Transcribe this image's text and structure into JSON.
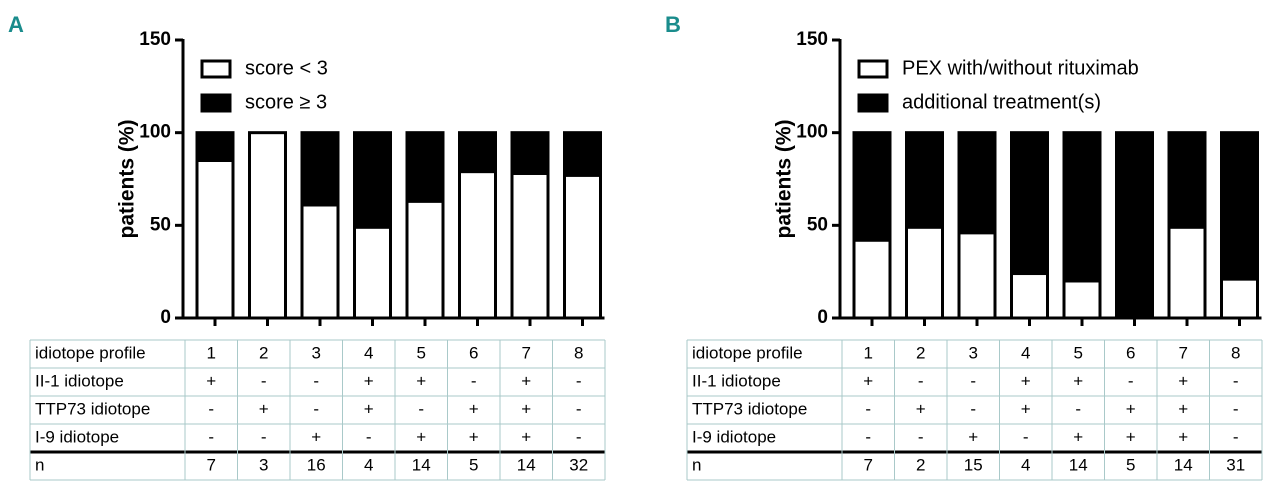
{
  "chart_data": [
    {
      "type": "bar",
      "stacked": true,
      "panel": "A",
      "ylabel": "patients (%)",
      "ylim": [
        0,
        150
      ],
      "yticks": [
        0,
        50,
        100,
        150
      ],
      "x_label": "idiotope profile",
      "categories": [
        "1",
        "2",
        "3",
        "4",
        "5",
        "6",
        "7",
        "8"
      ],
      "series": [
        {
          "name": "score < 3",
          "color": "#ffffff",
          "values": [
            85,
            100,
            61,
            49,
            63,
            79,
            78,
            77
          ]
        },
        {
          "name": "score ≥ 3",
          "color": "#000000",
          "values": [
            15,
            0,
            39,
            51,
            37,
            21,
            22,
            23
          ]
        }
      ],
      "table": [
        {
          "label": "II-1 idiotope",
          "values": [
            "+",
            "-",
            "-",
            "+",
            "+",
            "-",
            "+",
            "-"
          ]
        },
        {
          "label": "TTP73 idiotope",
          "values": [
            "-",
            "+",
            "-",
            "+",
            "-",
            "+",
            "+",
            "-"
          ]
        },
        {
          "label": "I-9 idiotope",
          "values": [
            "-",
            "-",
            "+",
            "-",
            "+",
            "+",
            "+",
            "-"
          ]
        },
        {
          "label": "n",
          "values": [
            7,
            3,
            16,
            4,
            14,
            5,
            14,
            32
          ]
        }
      ]
    },
    {
      "type": "bar",
      "stacked": true,
      "panel": "B",
      "ylabel": "patients (%)",
      "ylim": [
        0,
        150
      ],
      "yticks": [
        0,
        50,
        100,
        150
      ],
      "x_label": "idiotope profile",
      "categories": [
        "1",
        "2",
        "3",
        "4",
        "5",
        "6",
        "7",
        "8"
      ],
      "series": [
        {
          "name": "PEX with/without rituximab",
          "color": "#ffffff",
          "values": [
            42,
            49,
            46,
            24,
            20,
            0,
            49,
            21
          ]
        },
        {
          "name": "additional treatment(s)",
          "color": "#000000",
          "values": [
            58,
            51,
            54,
            76,
            80,
            100,
            51,
            79
          ]
        }
      ],
      "table": [
        {
          "label": "II-1 idiotope",
          "values": [
            "+",
            "-",
            "-",
            "+",
            "+",
            "-",
            "+",
            "-"
          ]
        },
        {
          "label": "TTP73 idiotope",
          "values": [
            "-",
            "+",
            "-",
            "+",
            "-",
            "+",
            "+",
            "-"
          ]
        },
        {
          "label": "I-9 idiotope",
          "values": [
            "-",
            "-",
            "+",
            "-",
            "+",
            "+",
            "+",
            "-"
          ]
        },
        {
          "label": "n",
          "values": [
            7,
            2,
            15,
            4,
            14,
            5,
            14,
            31
          ]
        }
      ]
    }
  ]
}
